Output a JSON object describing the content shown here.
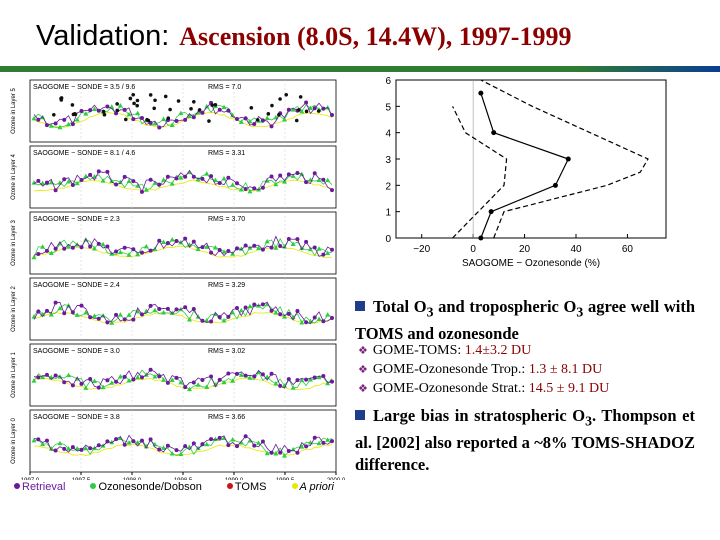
{
  "title": {
    "main": "Validation:",
    "sub": "Ascension (8.0S, 14.4W), 1997-1999"
  },
  "colors": {
    "retrieval": "#6a1b9a",
    "sonde": "#2ecc40",
    "toms": "#111111",
    "apriori": "#e8e800"
  },
  "bullets": [
    {
      "pre": "Total O",
      "sub1": "3",
      "mid": " and tropospheric O",
      "sub2": "3",
      "post": " agree well with TOMS and ozonesonde"
    },
    {
      "pre": "Large bias in stratospheric O",
      "sub1": "3",
      "post": ". Thompson et al. [2002] also reported a ~8% TOMS-SHADOZ difference."
    }
  ],
  "sub_bullets": [
    {
      "label": "GOME-TOMS:",
      "value": "1.4±3.2 DU"
    },
    {
      "label": "GOME-Ozonesonde Trop.:",
      "value": "1.3 ± 8.1 DU"
    },
    {
      "label": "GOME-Ozonesonde Strat.:",
      "value": "14.5 ± 9.1 DU"
    }
  ],
  "legend": {
    "retrieval": "Retrieval",
    "sonde": "Ozonesonde/Dobson",
    "toms": "TOMS",
    "apriori": "A priori"
  },
  "chart_data": [
    {
      "type": "line",
      "xlabel": "SAOGOME − Ozonesonde (%)",
      "ylabel": "",
      "xlim": [
        -30,
        75
      ],
      "ylim": [
        0,
        6
      ],
      "xticks": [
        -20,
        0,
        20,
        40,
        60
      ],
      "yticks": [
        0,
        1,
        2,
        3,
        4,
        5,
        6
      ],
      "series": [
        {
          "style": "mean",
          "x": [
            3,
            7,
            32,
            37,
            8,
            3
          ],
          "y": [
            0,
            1,
            2,
            3,
            4,
            5.5
          ]
        },
        {
          "style": "upper",
          "x": [
            8,
            12,
            52,
            65,
            68,
            23,
            3
          ],
          "y": [
            0,
            1,
            2,
            2.5,
            3,
            5,
            6
          ]
        },
        {
          "style": "lower",
          "x": [
            -8,
            2,
            12,
            13,
            -3,
            -8
          ],
          "y": [
            0,
            1,
            2,
            3,
            4,
            5
          ]
        }
      ]
    },
    {
      "type": "line",
      "panels": [
        {
          "ylabel": "Ozone in Layer 5",
          "header_left": "SAOGOME − SONDE =",
          "header_value": "3.5 / 9.6",
          "rms": "RMS = 7.0"
        },
        {
          "ylabel": "Ozone in Layer 4",
          "header_left": "SAOGOME − SONDE =",
          "header_value": "8.1 / 4.6",
          "rms": "RMS = 3.31"
        },
        {
          "ylabel": "Ozone in Layer 3",
          "header_left": "SAOGOME − SONDE =",
          "header_value": "2.3",
          "rms": "RMS = 3.70"
        },
        {
          "ylabel": "Ozone in Layer 2",
          "header_left": "SAOGOME − SONDE =",
          "header_value": "2.4",
          "rms": "RMS = 3.29"
        },
        {
          "ylabel": "Ozone in Layer 1",
          "header_left": "SAOGOME − SONDE =",
          "header_value": "3.0",
          "rms": "RMS = 3.02"
        },
        {
          "ylabel": "Ozone in Layer 0",
          "header_left": "SAOGOME − SONDE =",
          "header_value": "3.8",
          "rms": "RMS = 3.66"
        }
      ],
      "x_ticks": [
        "1997.0",
        "1997.5",
        "1998.0",
        "1998.5",
        "1999.0",
        "1999.5",
        "2000.0"
      ],
      "xlabel": "Year",
      "xlim": [
        1997.0,
        2000.0
      ]
    }
  ]
}
